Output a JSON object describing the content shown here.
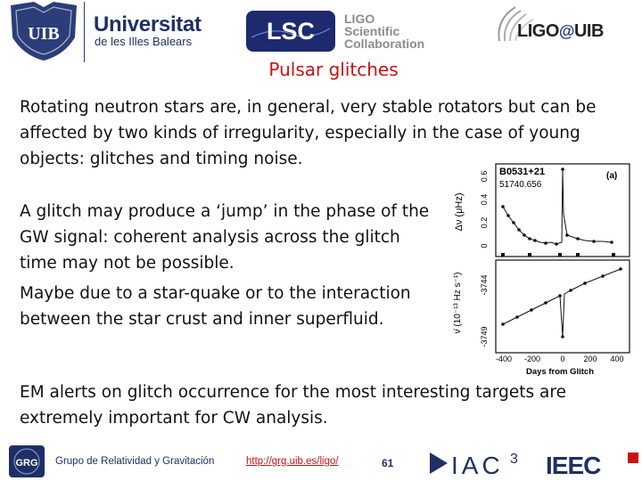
{
  "header": {
    "uib_initials": "UIB",
    "university_name": "Universitat",
    "university_sub": "de les Illes Balears",
    "lsc_acronym": "LSC",
    "lsc_full": [
      "LIGO",
      "Scientific",
      "Collaboration"
    ],
    "ligo_uib_left": "LIGO",
    "ligo_uib_at": "@",
    "ligo_uib_right": "UIB"
  },
  "slide": {
    "title": "Pulsar glitches",
    "para_intro": "Rotating neutron stars are, in general, very stable rotators but can be affected by two kinds of irregularity, especially in the case of young objects: glitches and timing noise.",
    "para_glitch": "A glitch may produce a ‘jump’ in the phase of the GW signal: coherent analysis across the glitch time may not be possible.",
    "para_quake": "Maybe due to a star-quake or to the interaction between the star crust and inner superfluid.",
    "para_em": "EM alerts on glitch occurrence for the most interesting targets are extremely important for CW analysis."
  },
  "figure": {
    "pulsar": "B0531+21",
    "epoch": "51740.656",
    "panel_tag": "(a)",
    "top_ylabel": "Δν (μHz)",
    "top_yticks": [
      "0",
      "0.2",
      "0.4",
      "0.6"
    ],
    "bottom_ylabel": "ν̇ (10⁻¹³ Hz s⁻¹)",
    "bottom_yticks": [
      "-3744",
      "-3749"
    ],
    "xticks": [
      "-400",
      "-200",
      "0",
      "200",
      "400"
    ],
    "xlabel": "Days from Glitch"
  },
  "footer": {
    "grg_label": "GRG",
    "group_name": "Grupo de Relatividad y Gravitación",
    "url": "http://grg.uib.es/ligo/",
    "page_number": "61",
    "iac_text": "IAC",
    "iac_sup": "3",
    "ieec_text": "IEEC"
  },
  "colors": {
    "title_red": "#cc1111",
    "uib_blue": "#1f2f66",
    "body_text": "#111111"
  }
}
